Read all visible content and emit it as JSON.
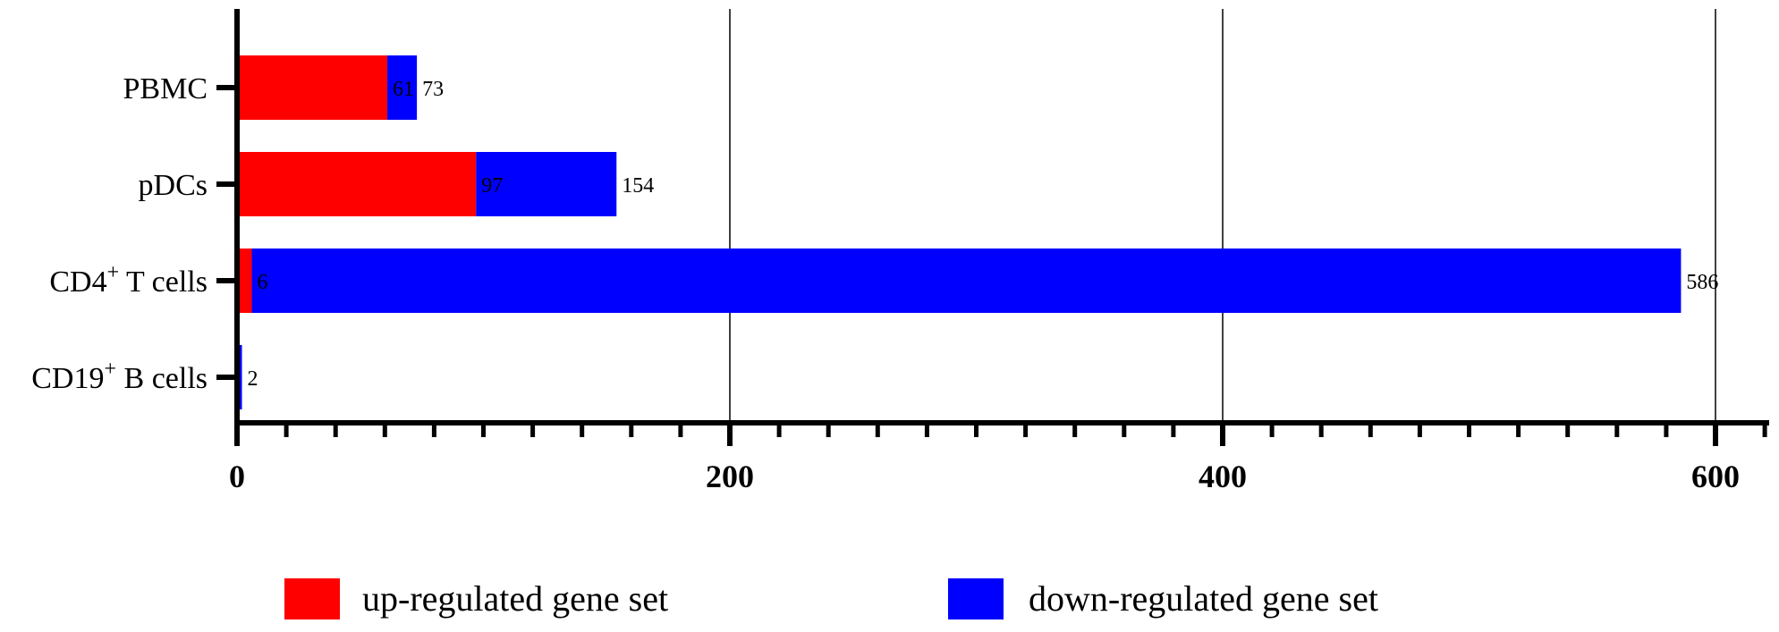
{
  "chart_data": {
    "type": "bar",
    "orientation": "horizontal",
    "stacked": true,
    "categories": [
      {
        "name": "PBMC",
        "sup": ""
      },
      {
        "name": "pDCs",
        "sup": ""
      },
      {
        "name": "CD4",
        "sup": "+",
        "suffix": " T cells"
      },
      {
        "name": "CD19",
        "sup": "+",
        "suffix": " B cells"
      }
    ],
    "series": [
      {
        "name": "up-regulated gene set",
        "color": "#ff0000",
        "values": [
          61,
          97,
          6,
          0
        ],
        "labels": [
          "61",
          "97",
          "6",
          ""
        ]
      },
      {
        "name": "down-regulated gene set",
        "color": "#0000ff",
        "values": [
          12,
          57,
          580,
          2
        ],
        "labels": [
          "73",
          "154",
          "586",
          "2"
        ]
      }
    ],
    "xlim": [
      0,
      620
    ],
    "xticks": [
      0,
      200,
      400,
      600
    ],
    "minor_step": 20,
    "grid": "vertical at major ticks",
    "legend_position": "bottom"
  }
}
